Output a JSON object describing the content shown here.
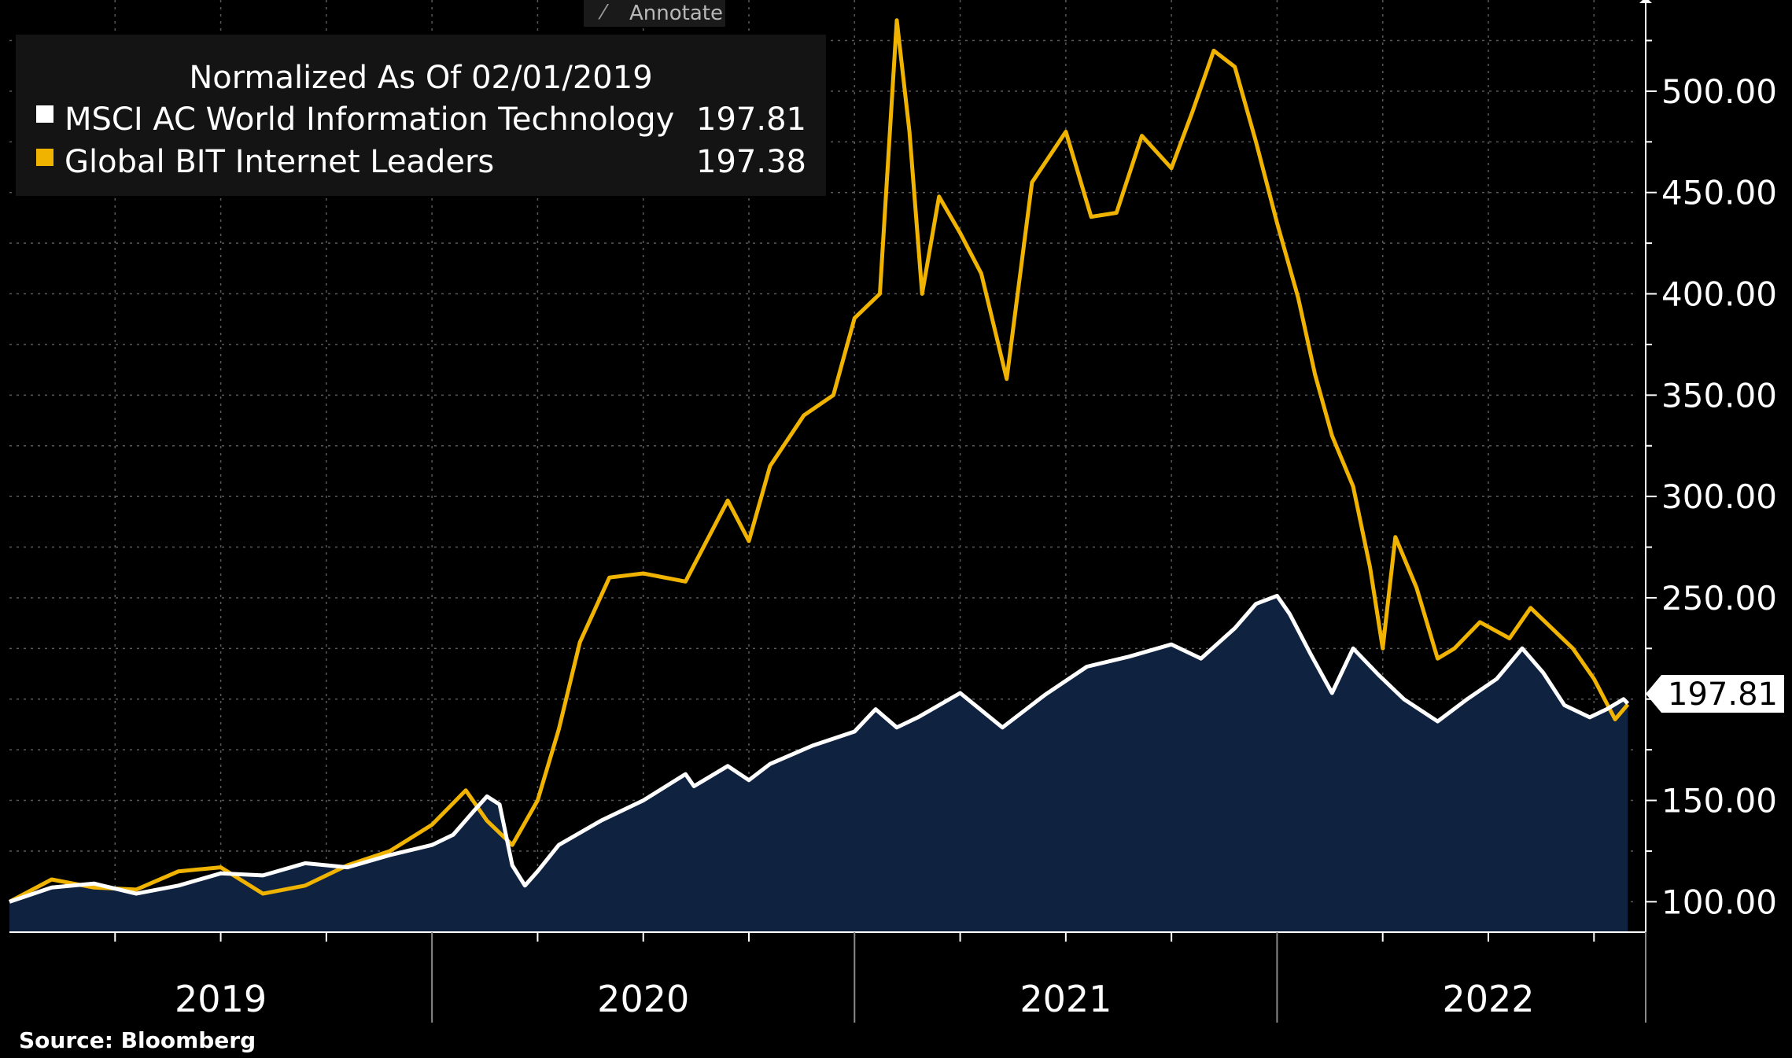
{
  "toolbar": {
    "annotate_label": "Annotate"
  },
  "legend": {
    "title": "Normalized As Of 02/01/2019",
    "items": [
      {
        "name": "MSCI AC World Information Technology",
        "value": "197.81",
        "color": "#ffffff"
      },
      {
        "name": "Global BIT Internet Leaders",
        "value": "197.38",
        "color": "#f0b400"
      }
    ]
  },
  "source": "Source: Bloomberg",
  "last_price_tag": "197.81",
  "chart_data": {
    "type": "line",
    "title": "Normalized As Of 02/01/2019",
    "ylim": [
      85,
      545
    ],
    "yticks": [
      {
        "value": 100,
        "label": "100.00"
      },
      {
        "value": 150,
        "label": "150.00"
      },
      {
        "value": 200,
        "label": ""
      },
      {
        "value": 250,
        "label": "250.00"
      },
      {
        "value": 300,
        "label": "300.00"
      },
      {
        "value": 350,
        "label": "350.00"
      },
      {
        "value": 400,
        "label": "400.00"
      },
      {
        "value": 450,
        "label": "450.00"
      },
      {
        "value": 500,
        "label": "500.00"
      }
    ],
    "xlim": [
      2019.0,
      2022.85
    ],
    "xtick_labels": [
      {
        "value": 2019,
        "label": "2019"
      },
      {
        "value": 2020,
        "label": "2020"
      },
      {
        "value": 2021,
        "label": "2021"
      },
      {
        "value": 2022,
        "label": "2022"
      }
    ],
    "grid": true,
    "legend_position": "top-left",
    "series": [
      {
        "name": "MSCI AC World Information Technology",
        "color": "#ffffff",
        "area_fill": "#0f2240",
        "points": [
          [
            2019.0,
            100
          ],
          [
            2019.1,
            107
          ],
          [
            2019.2,
            109
          ],
          [
            2019.3,
            104
          ],
          [
            2019.4,
            108
          ],
          [
            2019.5,
            114
          ],
          [
            2019.6,
            113
          ],
          [
            2019.7,
            119
          ],
          [
            2019.8,
            117
          ],
          [
            2019.9,
            123
          ],
          [
            2020.0,
            128
          ],
          [
            2020.05,
            133
          ],
          [
            2020.1,
            145
          ],
          [
            2020.13,
            152
          ],
          [
            2020.16,
            148
          ],
          [
            2020.19,
            118
          ],
          [
            2020.22,
            108
          ],
          [
            2020.25,
            115
          ],
          [
            2020.3,
            128
          ],
          [
            2020.4,
            140
          ],
          [
            2020.5,
            150
          ],
          [
            2020.6,
            163
          ],
          [
            2020.62,
            157
          ],
          [
            2020.7,
            167
          ],
          [
            2020.75,
            160
          ],
          [
            2020.8,
            168
          ],
          [
            2020.9,
            177
          ],
          [
            2021.0,
            184
          ],
          [
            2021.05,
            195
          ],
          [
            2021.1,
            186
          ],
          [
            2021.15,
            191
          ],
          [
            2021.25,
            203
          ],
          [
            2021.35,
            186
          ],
          [
            2021.45,
            202
          ],
          [
            2021.55,
            216
          ],
          [
            2021.65,
            221
          ],
          [
            2021.75,
            227
          ],
          [
            2021.82,
            220
          ],
          [
            2021.9,
            235
          ],
          [
            2021.95,
            247
          ],
          [
            2022.0,
            251
          ],
          [
            2022.03,
            242
          ],
          [
            2022.08,
            222
          ],
          [
            2022.13,
            203
          ],
          [
            2022.18,
            225
          ],
          [
            2022.24,
            212
          ],
          [
            2022.3,
            200
          ],
          [
            2022.38,
            189
          ],
          [
            2022.45,
            200
          ],
          [
            2022.52,
            210
          ],
          [
            2022.58,
            225
          ],
          [
            2022.63,
            213
          ],
          [
            2022.68,
            197
          ],
          [
            2022.74,
            191
          ],
          [
            2022.78,
            195
          ],
          [
            2022.82,
            200
          ],
          [
            2022.83,
            197.81
          ]
        ]
      },
      {
        "name": "Global BIT Internet Leaders",
        "color": "#f0b400",
        "points": [
          [
            2019.0,
            100
          ],
          [
            2019.1,
            111
          ],
          [
            2019.2,
            107
          ],
          [
            2019.3,
            106
          ],
          [
            2019.4,
            115
          ],
          [
            2019.5,
            117
          ],
          [
            2019.6,
            104
          ],
          [
            2019.7,
            108
          ],
          [
            2019.8,
            118
          ],
          [
            2019.9,
            125
          ],
          [
            2020.0,
            138
          ],
          [
            2020.08,
            155
          ],
          [
            2020.13,
            140
          ],
          [
            2020.19,
            128
          ],
          [
            2020.25,
            150
          ],
          [
            2020.3,
            185
          ],
          [
            2020.35,
            228
          ],
          [
            2020.42,
            260
          ],
          [
            2020.5,
            262
          ],
          [
            2020.6,
            258
          ],
          [
            2020.7,
            298
          ],
          [
            2020.75,
            278
          ],
          [
            2020.8,
            315
          ],
          [
            2020.88,
            340
          ],
          [
            2020.95,
            350
          ],
          [
            2021.0,
            388
          ],
          [
            2021.06,
            400
          ],
          [
            2021.1,
            535
          ],
          [
            2021.13,
            480
          ],
          [
            2021.16,
            400
          ],
          [
            2021.2,
            448
          ],
          [
            2021.25,
            430
          ],
          [
            2021.3,
            410
          ],
          [
            2021.36,
            358
          ],
          [
            2021.42,
            455
          ],
          [
            2021.5,
            480
          ],
          [
            2021.56,
            438
          ],
          [
            2021.62,
            440
          ],
          [
            2021.68,
            478
          ],
          [
            2021.75,
            462
          ],
          [
            2021.8,
            490
          ],
          [
            2021.85,
            520
          ],
          [
            2021.9,
            512
          ],
          [
            2021.95,
            475
          ],
          [
            2022.0,
            435
          ],
          [
            2022.05,
            398
          ],
          [
            2022.09,
            360
          ],
          [
            2022.13,
            330
          ],
          [
            2022.18,
            305
          ],
          [
            2022.22,
            265
          ],
          [
            2022.25,
            225
          ],
          [
            2022.28,
            280
          ],
          [
            2022.33,
            255
          ],
          [
            2022.38,
            220
          ],
          [
            2022.42,
            225
          ],
          [
            2022.48,
            238
          ],
          [
            2022.55,
            230
          ],
          [
            2022.6,
            245
          ],
          [
            2022.65,
            235
          ],
          [
            2022.7,
            225
          ],
          [
            2022.75,
            210
          ],
          [
            2022.8,
            190
          ],
          [
            2022.83,
            197.38
          ]
        ]
      }
    ]
  }
}
